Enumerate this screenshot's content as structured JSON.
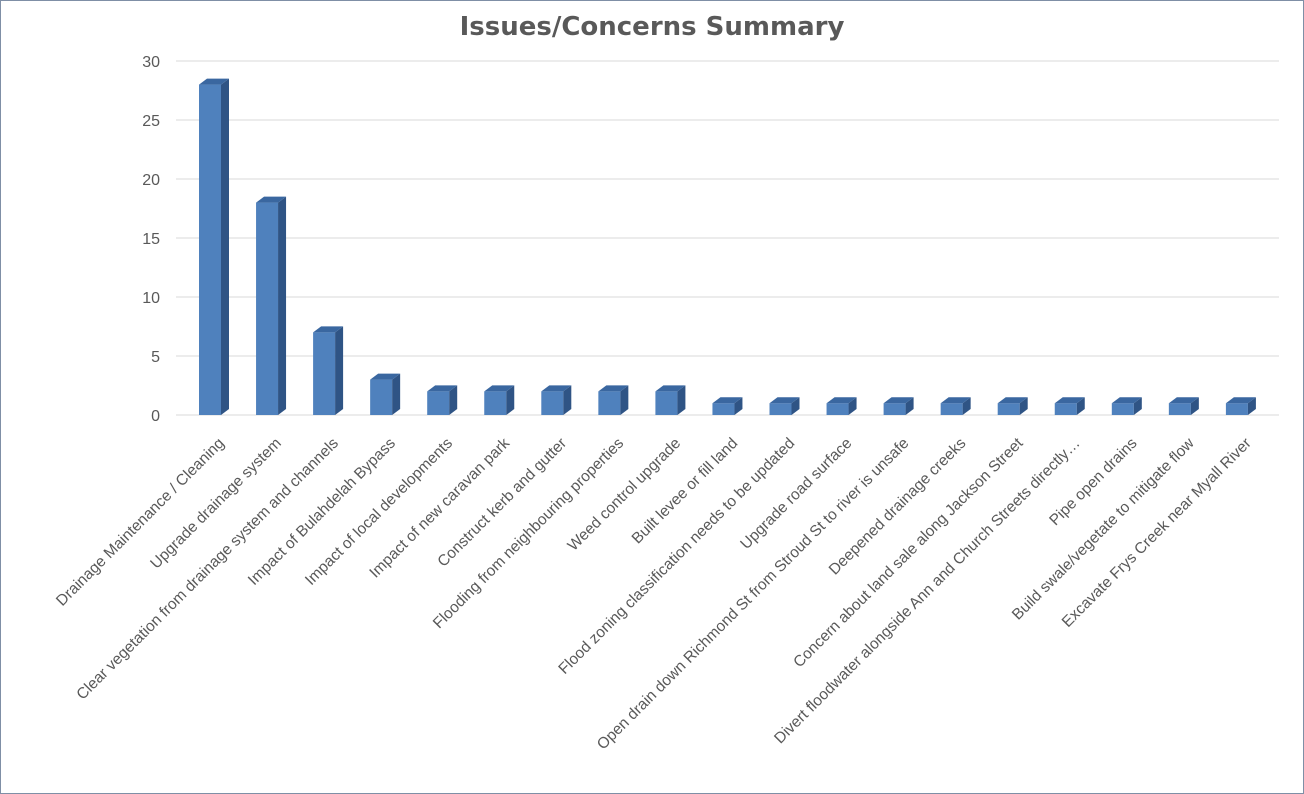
{
  "chart_data": {
    "type": "bar",
    "title": "Issues/Concerns Summary",
    "xlabel": "",
    "ylabel": "",
    "ylim": [
      0,
      30
    ],
    "yticks": [
      0,
      5,
      10,
      15,
      20,
      25,
      30
    ],
    "grid": true,
    "legend": "none",
    "style": "3d-column",
    "categories": [
      "Drainage Maintenance / Cleaning",
      "Upgrade drainage system",
      "Clear vegetation from drainage system and channels",
      "Impact of Bulahdelah Bypass",
      "Impact of local developments",
      "Impact of new caravan park",
      "Construct kerb and gutter",
      "Flooding from neighbouring properties",
      "Weed control upgrade",
      "Built levee or fill land",
      "Flood zoning classification needs to be updated",
      "Upgrade road surface",
      "Open drain down Richmond St from Stroud St to river is unsafe",
      "Deepened drainage creeks",
      "Concern about land sale along Jackson Street",
      "Divert floodwater alongside Ann and Church Streets directly…",
      "Pipe open drains",
      "Build swale/vegetate to mitigate flow",
      "Excavate Frys Creek near Myall River"
    ],
    "values": [
      28,
      18,
      7,
      3,
      2,
      2,
      2,
      2,
      2,
      1,
      1,
      1,
      1,
      1,
      1,
      1,
      1,
      1,
      1
    ],
    "colors": {
      "bar_front": "#4f81bd",
      "bar_side": "#2f5485",
      "bar_top": "#3a67a0",
      "grid": "#d9d9d9",
      "text": "#595959",
      "border": "#7f8fa6"
    }
  }
}
